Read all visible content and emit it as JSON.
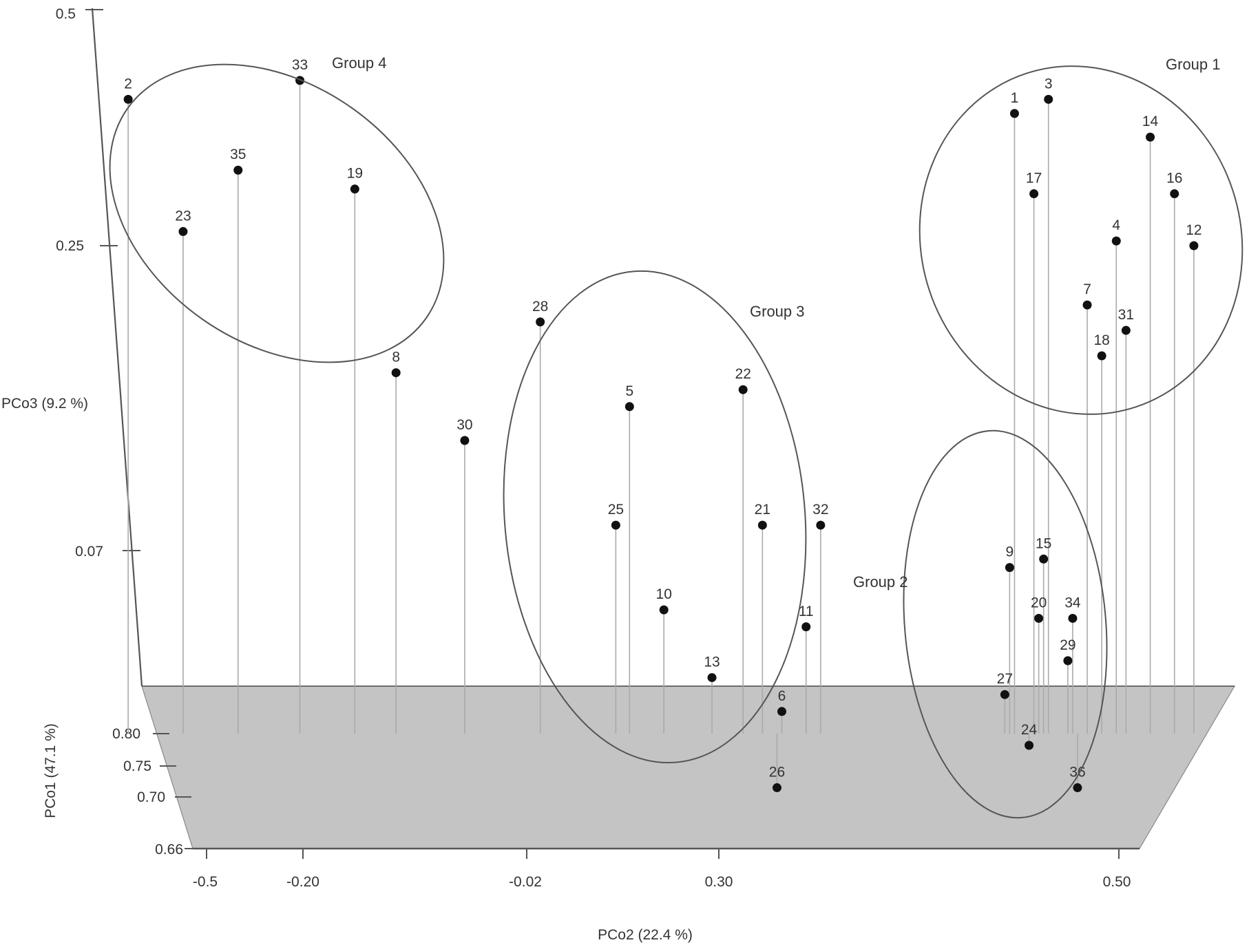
{
  "chart_data": {
    "type": "scatter",
    "subtype": "3d-stem-plot",
    "title": "",
    "axes": {
      "x": {
        "label": "PCo2 (22.4 %)",
        "ticks": [
          "-0.5",
          "-0.20",
          "-0.02",
          "0.30",
          "0.50"
        ]
      },
      "y": {
        "label": "PCo3 (9.2 %)",
        "ticks": [
          "0.5",
          "0.25",
          "0.07"
        ]
      },
      "z": {
        "label": "PCo1 (47.1 %)",
        "ticks": [
          "0.80",
          "0.75",
          "0.70",
          "0.66"
        ]
      }
    },
    "groups": [
      {
        "label": "Group 1",
        "members": [
          "1",
          "3",
          "14",
          "17",
          "16",
          "4",
          "12",
          "7",
          "31",
          "18"
        ]
      },
      {
        "label": "Group 2",
        "members": [
          "9",
          "15",
          "20",
          "34",
          "27",
          "29",
          "24",
          "36"
        ]
      },
      {
        "label": "Group 3",
        "members": [
          "5",
          "22",
          "25",
          "21",
          "32",
          "10",
          "11",
          "13",
          "6",
          "26"
        ]
      },
      {
        "label": "Group 4",
        "members": [
          "2",
          "33",
          "35",
          "19",
          "23",
          "28",
          "8",
          "30"
        ]
      }
    ],
    "points": [
      {
        "label": "2",
        "pco2": -0.56,
        "pco3": 0.405
      },
      {
        "label": "23",
        "pco2": -0.48,
        "pco3": 0.265
      },
      {
        "label": "35",
        "pco2": -0.4,
        "pco3": 0.33
      },
      {
        "label": "33",
        "pco2": -0.31,
        "pco3": 0.425
      },
      {
        "label": "19",
        "pco2": -0.23,
        "pco3": 0.31
      },
      {
        "label": "8",
        "pco2": -0.17,
        "pco3": 0.175
      },
      {
        "label": "30",
        "pco2": -0.07,
        "pco3": 0.135
      },
      {
        "label": "28",
        "pco2": 0.04,
        "pco3": 0.205
      },
      {
        "label": "25",
        "pco2": 0.15,
        "pco3": 0.085
      },
      {
        "label": "5",
        "pco2": 0.17,
        "pco3": 0.155
      },
      {
        "label": "10",
        "pco2": 0.22,
        "pco3": 0.035
      },
      {
        "label": "13",
        "pco2": 0.29,
        "pco3": -0.005
      },
      {
        "label": "22",
        "pco2": 0.35,
        "pco3": 0.165
      },
      {
        "label": "21",
        "pco2": 0.39,
        "pco3": 0.085
      },
      {
        "label": "26",
        "pco2": 0.42,
        "pco3": -0.07
      },
      {
        "label": "6",
        "pco2": 0.43,
        "pco3": -0.025
      },
      {
        "label": "11",
        "pco2": 0.48,
        "pco3": 0.025
      },
      {
        "label": "32",
        "pco2": 0.51,
        "pco3": 0.085
      },
      {
        "label": "27",
        "pco2": 0.89,
        "pco3": -0.015
      },
      {
        "label": "9",
        "pco2": 0.9,
        "pco3": 0.06
      },
      {
        "label": "24",
        "pco2": 0.94,
        "pco3": -0.045
      },
      {
        "label": "20",
        "pco2": 0.96,
        "pco3": 0.03
      },
      {
        "label": "15",
        "pco2": 0.97,
        "pco3": 0.065
      },
      {
        "label": "29",
        "pco2": 1.02,
        "pco3": 0.005
      },
      {
        "label": "34",
        "pco2": 1.03,
        "pco3": 0.03
      },
      {
        "label": "36",
        "pco2": 1.04,
        "pco3": -0.07
      },
      {
        "label": "1",
        "pco2": 0.91,
        "pco3": 0.39
      },
      {
        "label": "17",
        "pco2": 0.95,
        "pco3": 0.305
      },
      {
        "label": "3",
        "pco2": 0.98,
        "pco3": 0.405
      },
      {
        "label": "7",
        "pco2": 1.06,
        "pco3": 0.215
      },
      {
        "label": "18",
        "pco2": 1.09,
        "pco3": 0.185
      },
      {
        "label": "4",
        "pco2": 1.12,
        "pco3": 0.255
      },
      {
        "label": "31",
        "pco2": 1.14,
        "pco3": 0.2
      },
      {
        "label": "14",
        "pco2": 1.19,
        "pco3": 0.365
      },
      {
        "label": "16",
        "pco2": 1.24,
        "pco3": 0.305
      },
      {
        "label": "12",
        "pco2": 1.28,
        "pco3": 0.25
      }
    ],
    "grid": false,
    "legend": "none",
    "colors": {
      "point": "#111111",
      "floor": "#c4c4c4",
      "stem": "#aaaaaa",
      "ellipse": "#555555"
    }
  }
}
